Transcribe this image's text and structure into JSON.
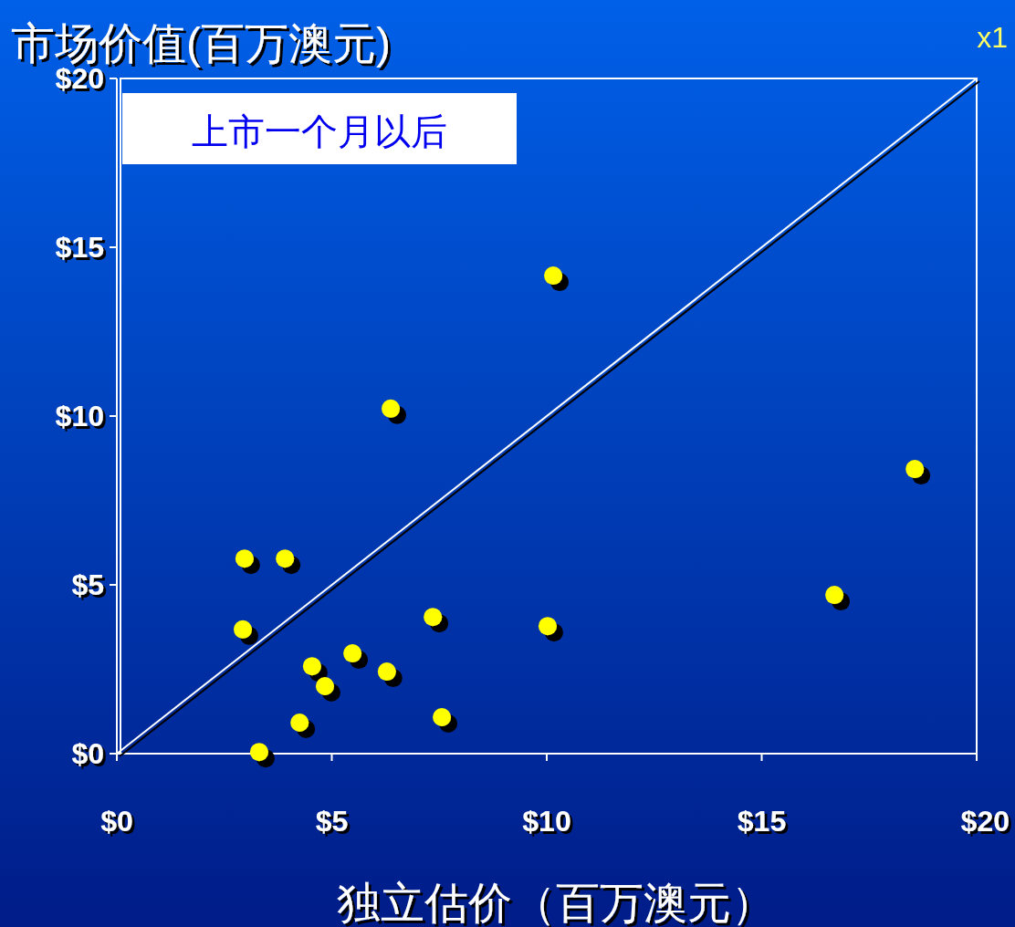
{
  "chart_data": {
    "type": "scatter",
    "ylabel": "市场价值(百万澳元)",
    "xlabel": "独立估价（百万澳元）",
    "annotations": [
      "上市一个月以后",
      "x1"
    ],
    "xlim": [
      0,
      20
    ],
    "ylim": [
      0,
      20
    ],
    "xticks": [
      {
        "value": 0,
        "label": "$0"
      },
      {
        "value": 5,
        "label": "$5"
      },
      {
        "value": 10,
        "label": "$10"
      },
      {
        "value": 15,
        "label": "$15"
      },
      {
        "value": 20,
        "label": "$20"
      }
    ],
    "yticks": [
      {
        "value": 0,
        "label": "$0"
      },
      {
        "value": 5,
        "label": "$5"
      },
      {
        "value": 10,
        "label": "$10"
      },
      {
        "value": 15,
        "label": "$15"
      },
      {
        "value": 20,
        "label": "$20"
      }
    ],
    "grid": false,
    "series": [
      {
        "marker": "circle",
        "color": "#ffff00",
        "x": [
          2.97,
          3.91,
          2.93,
          4.54,
          4.84,
          4.25,
          3.31,
          5.48,
          6.28,
          6.37,
          7.35,
          7.56,
          10.02,
          10.15,
          16.69,
          18.56
        ],
        "values": [
          5.78,
          5.78,
          3.68,
          2.59,
          2.0,
          0.92,
          0.05,
          2.97,
          2.43,
          10.22,
          4.05,
          1.08,
          3.78,
          14.16,
          4.7,
          8.43
        ]
      },
      {
        "type": "line",
        "color": "#ffffff",
        "x": [
          0,
          20
        ],
        "values": [
          0,
          20
        ]
      }
    ]
  }
}
